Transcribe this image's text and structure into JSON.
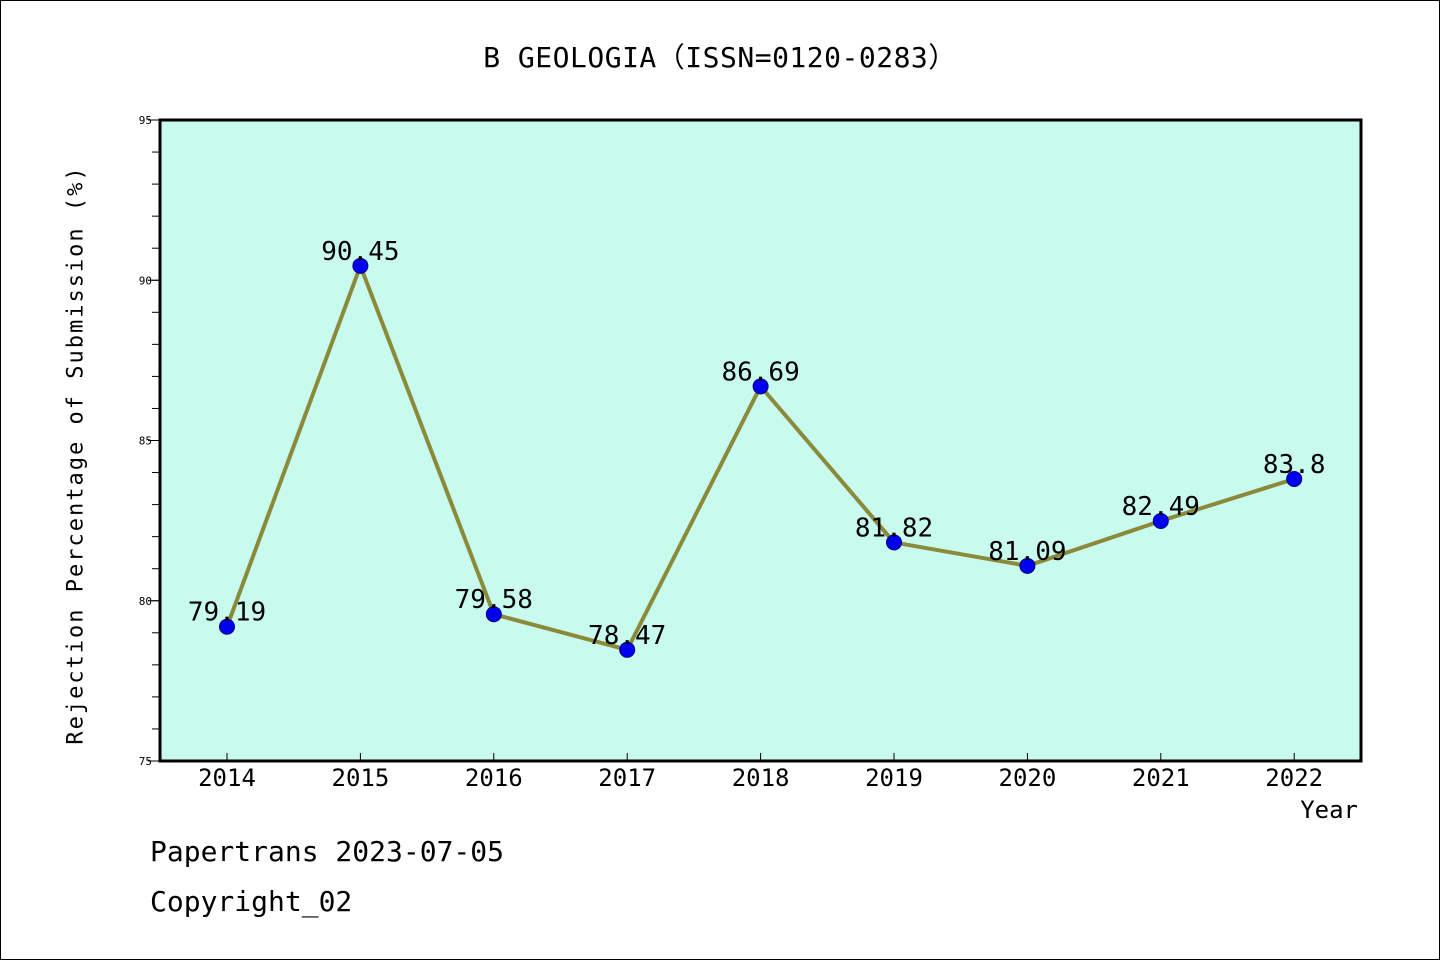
{
  "chart_data": {
    "type": "line",
    "title": "B GEOLOGIA（ISSN=0120-0283）",
    "xlabel": "Year",
    "ylabel": "Rejection Percentage of Submission (%)",
    "categories": [
      "2014",
      "2015",
      "2016",
      "2017",
      "2018",
      "2019",
      "2020",
      "2021",
      "2022"
    ],
    "values": [
      79.19,
      90.45,
      79.58,
      78.47,
      86.69,
      81.82,
      81.09,
      82.49,
      83.8
    ],
    "data_labels": [
      "79.19",
      "90.45",
      "79.58",
      "78.47",
      "86.69",
      "81.82",
      "81.09",
      "82.49",
      "83.8"
    ],
    "ylim": [
      75,
      95
    ],
    "yticks": [
      "75",
      "80",
      "85",
      "90",
      "95"
    ],
    "grid": false,
    "legend": "none",
    "colors": {
      "plot_background": "#c8fbee",
      "line": "#8b8a3b",
      "marker": "#0000ee",
      "axis": "#000000"
    }
  },
  "footer": {
    "date_line": "Papertrans 2023-07-05",
    "copyright_line": "Copyright_02"
  }
}
